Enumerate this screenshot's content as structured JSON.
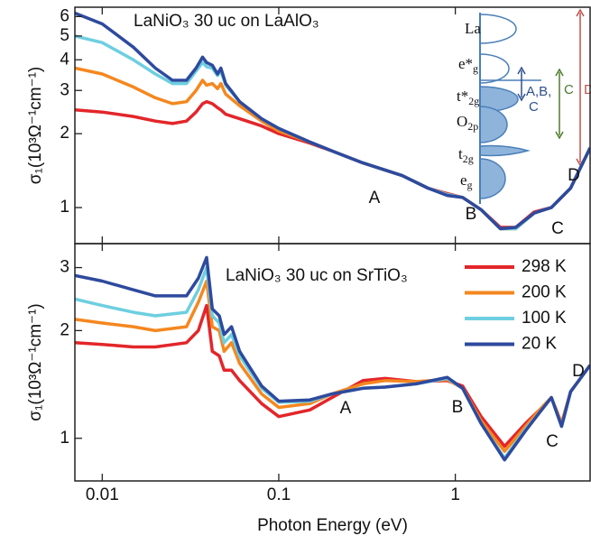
{
  "chart_data": [
    {
      "type": "line",
      "title": "LaNiO₃ 30 uc on LaAlO₃",
      "ylabel": "σ₁(10³Ω⁻¹cm⁻¹)",
      "log_x": true,
      "log_y": true,
      "x": [
        0.007,
        0.01,
        0.015,
        0.02,
        0.025,
        0.03,
        0.034,
        0.037,
        0.039,
        0.042,
        0.045,
        0.047,
        0.05,
        0.06,
        0.08,
        0.1,
        0.15,
        0.2,
        0.3,
        0.5,
        0.7,
        0.9,
        1.1,
        1.4,
        1.8,
        2.2,
        2.8,
        3.5,
        4.5,
        5.8
      ],
      "series": [
        {
          "color": "#e3262a",
          "values": [
            2.5,
            2.45,
            2.35,
            2.25,
            2.2,
            2.25,
            2.45,
            2.65,
            2.7,
            2.65,
            2.55,
            2.5,
            2.4,
            2.3,
            2.15,
            2.0,
            1.83,
            1.7,
            1.52,
            1.35,
            1.2,
            1.14,
            1.1,
            0.98,
            0.83,
            0.83,
            0.96,
            1.0,
            1.2,
            1.75
          ]
        },
        {
          "color": "#f5871f",
          "values": [
            3.7,
            3.5,
            3.1,
            2.8,
            2.65,
            2.7,
            3.0,
            3.3,
            3.15,
            3.2,
            3.05,
            3.2,
            2.9,
            2.6,
            2.25,
            2.05,
            1.85,
            1.7,
            1.52,
            1.35,
            1.2,
            1.13,
            1.1,
            0.98,
            0.82,
            0.82,
            0.95,
            1.0,
            1.2,
            1.75
          ]
        },
        {
          "color": "#6dcfe0",
          "values": [
            5.0,
            4.7,
            4.0,
            3.5,
            3.2,
            3.2,
            3.6,
            3.9,
            3.75,
            3.7,
            3.45,
            3.6,
            3.15,
            2.7,
            2.3,
            2.1,
            1.85,
            1.7,
            1.52,
            1.35,
            1.2,
            1.13,
            1.1,
            0.98,
            0.82,
            0.82,
            0.95,
            1.0,
            1.2,
            1.75
          ]
        },
        {
          "color": "#2e4a9e",
          "values": [
            6.2,
            5.6,
            4.5,
            3.7,
            3.3,
            3.3,
            3.7,
            4.1,
            3.9,
            3.8,
            3.5,
            3.7,
            3.2,
            2.7,
            2.3,
            2.1,
            1.85,
            1.7,
            1.52,
            1.35,
            1.2,
            1.12,
            1.1,
            0.98,
            0.82,
            0.83,
            0.95,
            1.0,
            1.2,
            1.75
          ]
        }
      ],
      "xlim": [
        0.007,
        5.8
      ],
      "ylim": [
        0.713,
        6.55
      ],
      "xticks": [
        0.01,
        0.1,
        1
      ],
      "yticks": [
        1,
        2,
        3,
        4,
        5,
        6
      ],
      "annotations": [
        "A",
        "B",
        "C",
        "D"
      ],
      "inset": {
        "labels": [
          {
            "text": "La"
          },
          {
            "text": "e*",
            "sub": "g"
          },
          {
            "text": "t*",
            "sub": "2g"
          },
          {
            "text": "O",
            "sub": "2p"
          },
          {
            "text": "t",
            "sub": "2g"
          },
          {
            "text": "e",
            "sub": "g"
          }
        ],
        "arrows": [
          [
            "A,B,",
            "C"
          ],
          [
            "C"
          ],
          [
            "D"
          ]
        ]
      }
    },
    {
      "type": "line",
      "title": "LaNiO₃ 30 uc on SrTiO₃",
      "ylabel": "σ₁(10³Ω⁻¹cm⁻¹)",
      "xlabel": "Photon Energy (eV)",
      "log_x": true,
      "log_y": true,
      "x": [
        0.007,
        0.01,
        0.015,
        0.02,
        0.03,
        0.035,
        0.039,
        0.042,
        0.046,
        0.049,
        0.054,
        0.06,
        0.08,
        0.1,
        0.15,
        0.2,
        0.3,
        0.4,
        0.6,
        0.9,
        1.1,
        1.4,
        1.9,
        2.5,
        3.0,
        3.5,
        4.0,
        4.5,
        5.8
      ],
      "series": [
        {
          "name": "298 K",
          "color": "#e3262a",
          "values": [
            1.85,
            1.83,
            1.8,
            1.8,
            1.85,
            2.0,
            2.35,
            1.75,
            1.7,
            1.55,
            1.55,
            1.45,
            1.25,
            1.15,
            1.2,
            1.3,
            1.45,
            1.47,
            1.44,
            1.45,
            1.4,
            1.15,
            0.95,
            1.1,
            1.2,
            1.3,
            1.1,
            1.35,
            1.6
          ]
        },
        {
          "name": "200 K",
          "color": "#f5871f",
          "values": [
            2.15,
            2.1,
            2.05,
            2.0,
            2.05,
            2.4,
            2.75,
            2.05,
            2.0,
            1.75,
            1.85,
            1.62,
            1.33,
            1.22,
            1.25,
            1.33,
            1.42,
            1.45,
            1.44,
            1.46,
            1.38,
            1.12,
            0.92,
            1.08,
            1.2,
            1.3,
            1.1,
            1.35,
            1.6
          ]
        },
        {
          "name": "100 K",
          "color": "#6dcfe0",
          "values": [
            2.45,
            2.35,
            2.25,
            2.2,
            2.25,
            2.6,
            3.0,
            2.2,
            2.1,
            1.85,
            1.95,
            1.7,
            1.38,
            1.26,
            1.27,
            1.33,
            1.38,
            1.39,
            1.42,
            1.47,
            1.38,
            1.1,
            0.88,
            1.06,
            1.18,
            1.3,
            1.08,
            1.35,
            1.6
          ]
        },
        {
          "name": "20 K",
          "color": "#2e4a9e",
          "values": [
            2.85,
            2.75,
            2.6,
            2.5,
            2.5,
            2.8,
            3.2,
            2.3,
            2.2,
            1.95,
            2.05,
            1.75,
            1.4,
            1.27,
            1.28,
            1.33,
            1.38,
            1.39,
            1.42,
            1.48,
            1.38,
            1.1,
            0.87,
            1.05,
            1.18,
            1.3,
            1.08,
            1.35,
            1.6
          ]
        }
      ],
      "xlim": [
        0.007,
        5.8
      ],
      "ylim": [
        0.76,
        3.5
      ],
      "xticks": [
        0.01,
        0.1,
        1
      ],
      "yticks": [
        1,
        2,
        3
      ],
      "legend": "upper right",
      "annotations": [
        "A",
        "B",
        "C",
        "D"
      ]
    }
  ]
}
